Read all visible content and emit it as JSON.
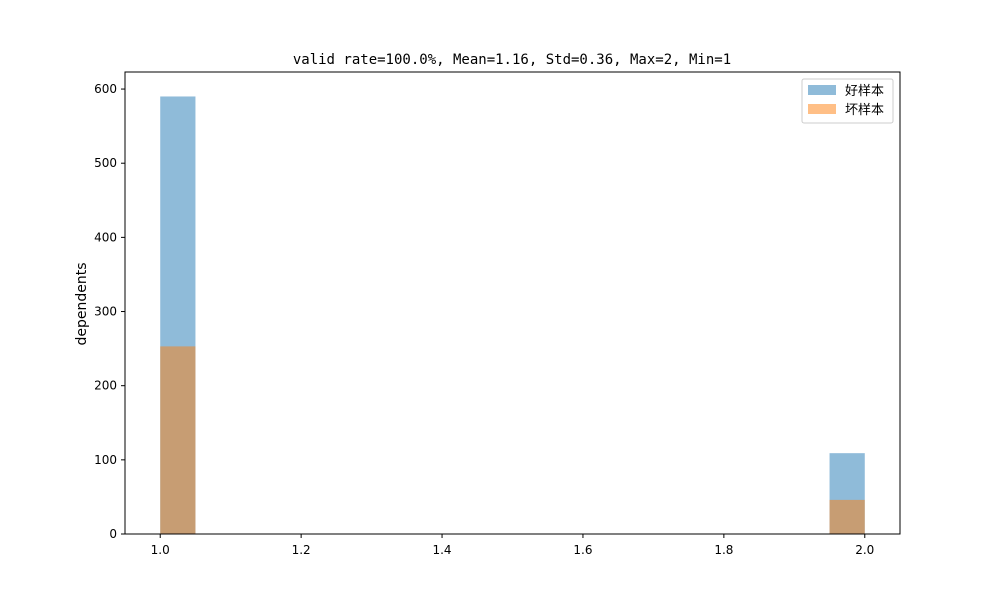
{
  "chart_data": {
    "type": "bar",
    "title": "valid rate=100.0%, Mean=1.16, Std=0.36, Max=2, Min=1",
    "xlabel": "",
    "ylabel": "dependents",
    "xlim": [
      0.95,
      2.05
    ],
    "ylim": [
      0,
      623
    ],
    "xticks": [
      1.0,
      1.2,
      1.4,
      1.6,
      1.8,
      2.0
    ],
    "xtick_labels": [
      "1.0",
      "1.2",
      "1.4",
      "1.6",
      "1.8",
      "2.0"
    ],
    "yticks": [
      0,
      100,
      200,
      300,
      400,
      500,
      600
    ],
    "ytick_labels": [
      "0",
      "100",
      "200",
      "300",
      "400",
      "500",
      "600"
    ],
    "grid": false,
    "legend_position": "top-right",
    "series": [
      {
        "name": "好样本",
        "color": "#1f77b4",
        "opacity": 0.5,
        "bins": [
          {
            "x0": 1.0,
            "x1": 1.05,
            "value": 590
          },
          {
            "x0": 1.95,
            "x1": 2.0,
            "value": 109
          }
        ]
      },
      {
        "name": "坏样本",
        "color": "#ff7f0e",
        "opacity": 0.5,
        "bins": [
          {
            "x0": 1.0,
            "x1": 1.05,
            "value": 253
          },
          {
            "x0": 1.95,
            "x1": 2.0,
            "value": 46
          }
        ]
      }
    ]
  }
}
